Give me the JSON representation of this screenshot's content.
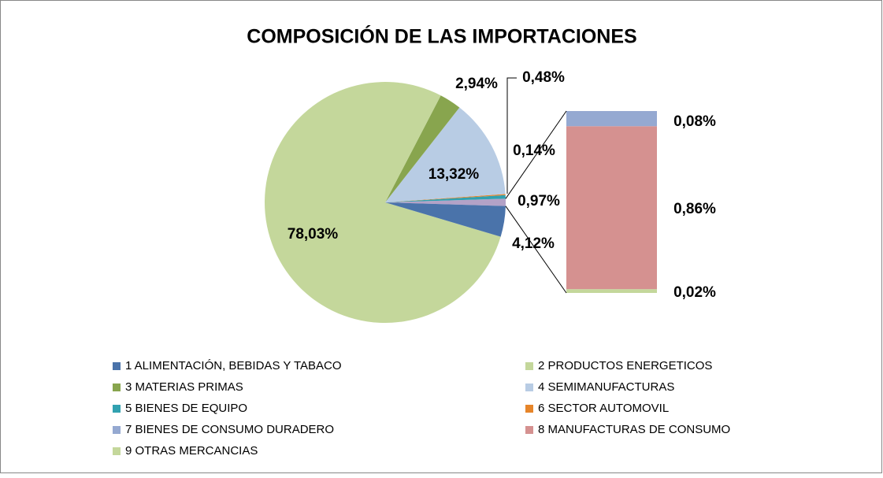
{
  "chart_data": {
    "type": "bar-of-pie",
    "title": "COMPOSICIÓN DE LAS IMPORTACIONES",
    "categories": [
      "1 ALIMENTACIÓN, BEBIDAS Y TABACO",
      "2 PRODUCTOS ENERGETICOS",
      "3 MATERIAS PRIMAS",
      "4 SEMIMANUFACTURAS",
      "5 BIENES DE EQUIPO",
      "6 SECTOR AUTOMOVIL",
      "7 BIENES DE CONSUMO DURADERO",
      "8 MANUFACTURAS DE CONSUMO",
      "9 OTRAS MERCANCIAS"
    ],
    "values": [
      4.12,
      78.03,
      2.94,
      13.32,
      0.48,
      0.14,
      0.08,
      0.86,
      0.02
    ],
    "value_labels": [
      "4,12%",
      "78,03%",
      "2,94%",
      "13,32%",
      "0,48%",
      "0,14%",
      "0,08%",
      "0,86%",
      "0,02%"
    ],
    "colors": [
      "#4a73aa",
      "#c4d79b",
      "#88a54e",
      "#b8cce4",
      "#31a1b0",
      "#e6852a",
      "#95a9d1",
      "#d59190",
      "#c4d79b"
    ],
    "other": {
      "value": 0.97,
      "label": "0,97%",
      "color": "#b3a2c7"
    },
    "split_last": 3,
    "legend": "bottom"
  }
}
